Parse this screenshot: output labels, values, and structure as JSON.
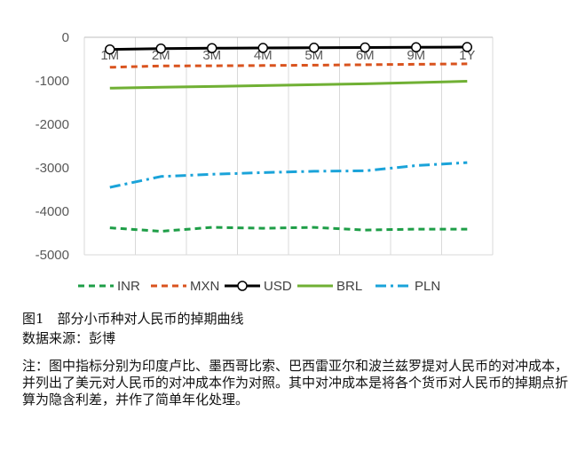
{
  "chart_data": {
    "type": "line",
    "categories": [
      "1M",
      "2M",
      "3M",
      "4M",
      "5M",
      "6M",
      "9M",
      "1Y"
    ],
    "yticks": [
      "0",
      "-1000",
      "-2000",
      "-3000",
      "-4000",
      "-5000"
    ],
    "ylim": [
      -5000,
      0
    ],
    "grid": "vertical",
    "legend_position": "bottom",
    "series": [
      {
        "name": "INR",
        "color": "#1e9e47",
        "dash": "dashed",
        "values": [
          -4380,
          -4460,
          -4370,
          -4390,
          -4370,
          -4430,
          -4410,
          -4410
        ]
      },
      {
        "name": "MXN",
        "color": "#d9531e",
        "dash": "dashed",
        "values": [
          -690,
          -660,
          -655,
          -650,
          -640,
          -630,
          -620,
          -610
        ]
      },
      {
        "name": "USD",
        "color": "#000000",
        "dash": "solid",
        "marker": "circle",
        "values": [
          -280,
          -260,
          -250,
          -245,
          -240,
          -235,
          -230,
          -225
        ]
      },
      {
        "name": "BRL",
        "color": "#70b034",
        "dash": "solid",
        "values": [
          -1170,
          -1150,
          -1130,
          -1110,
          -1090,
          -1070,
          -1040,
          -1010
        ]
      },
      {
        "name": "PLN",
        "color": "#1aa3d9",
        "dash": "dashdot",
        "values": [
          -3450,
          -3200,
          -3150,
          -3110,
          -3080,
          -3070,
          -2950,
          -2880
        ]
      }
    ]
  },
  "caption": {
    "title": "图1　部分小币种对人民币的掉期曲线",
    "source": "数据来源：彭博",
    "note": "注：图中指标分别为印度卢比、墨西哥比索、巴西雷亚尔和波兰兹罗提对人民币的对冲成本，并列出了美元对人民币的对冲成本作为对照。其中对冲成本是将各个货币对人民币的掉期点折算为隐含利差，并作了简单年化处理。"
  }
}
